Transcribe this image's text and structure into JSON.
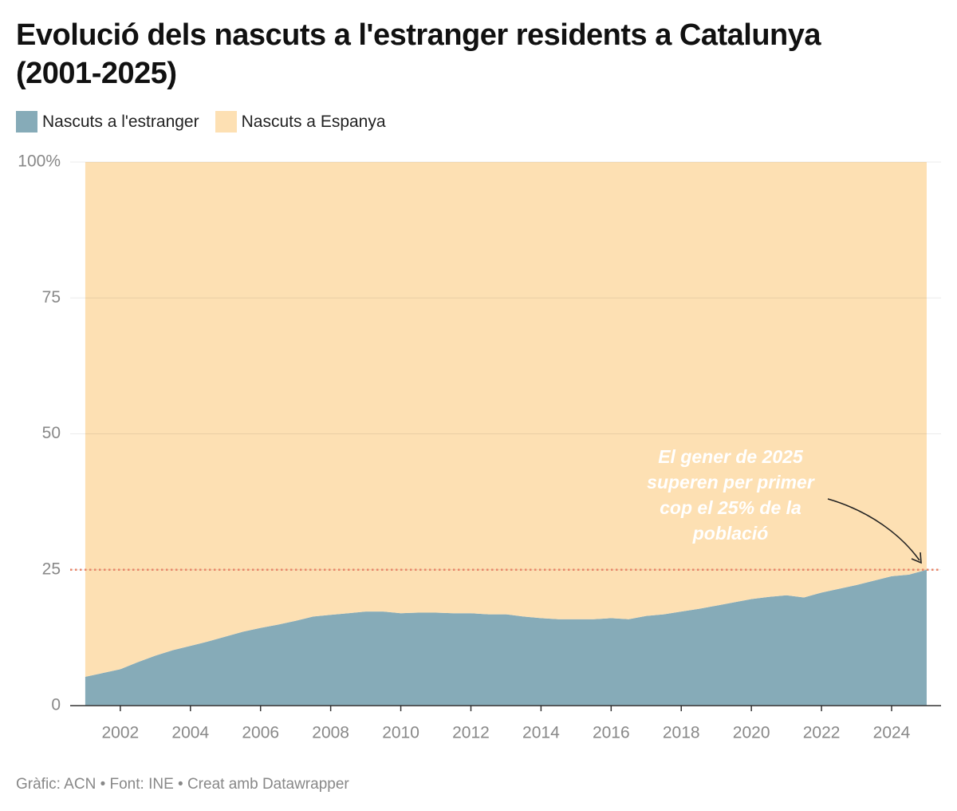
{
  "chart_data": {
    "type": "stacked_area",
    "title": "Evolució dels nascuts a l'estranger residents a Catalunya (2001-2025)",
    "footer": "Gràfic: ACN • Font: INE • Creat amb Datawrapper",
    "x": [
      2001,
      2001.5,
      2002,
      2002.5,
      2003,
      2003.5,
      2004,
      2004.5,
      2005,
      2005.5,
      2006,
      2006.5,
      2007,
      2007.5,
      2008,
      2008.5,
      2009,
      2009.5,
      2010,
      2010.5,
      2011,
      2011.5,
      2012,
      2012.5,
      2013,
      2013.5,
      2014,
      2014.5,
      2015,
      2015.5,
      2016,
      2016.5,
      2017,
      2017.5,
      2018,
      2018.5,
      2019,
      2019.5,
      2020,
      2020.5,
      2021,
      2021.5,
      2022,
      2022.5,
      2023,
      2023.5,
      2024,
      2024.5,
      2025
    ],
    "series": [
      {
        "name": "Nascuts a l'estranger",
        "color": "#86abb8",
        "values": [
          5.3,
          6.0,
          6.7,
          8.0,
          9.2,
          10.2,
          11.0,
          11.8,
          12.7,
          13.6,
          14.3,
          14.9,
          15.6,
          16.4,
          16.7,
          17.0,
          17.3,
          17.3,
          17.0,
          17.1,
          17.1,
          17.0,
          17.0,
          16.8,
          16.8,
          16.4,
          16.1,
          15.9,
          15.9,
          15.9,
          16.1,
          15.9,
          16.5,
          16.8,
          17.3,
          17.8,
          18.4,
          19.0,
          19.6,
          20.0,
          20.3,
          19.9,
          20.8,
          21.5,
          22.2,
          23.0,
          23.8,
          24.1,
          25.0
        ]
      },
      {
        "name": "Nascuts a Espanya",
        "color": "#fde0b3",
        "values": [
          94.7,
          94.0,
          93.3,
          92.0,
          90.8,
          89.8,
          89.0,
          88.2,
          87.3,
          86.4,
          85.7,
          85.1,
          84.4,
          83.6,
          83.3,
          83.0,
          82.7,
          82.7,
          83.0,
          82.9,
          82.9,
          83.0,
          83.0,
          83.2,
          83.2,
          83.6,
          83.9,
          84.1,
          84.1,
          84.1,
          83.9,
          84.1,
          83.5,
          83.2,
          82.7,
          82.2,
          81.6,
          81.0,
          80.4,
          80.0,
          79.7,
          80.1,
          79.2,
          78.5,
          77.8,
          77.0,
          76.2,
          75.9,
          75.0
        ]
      }
    ],
    "xlim": [
      2000.57,
      2025.41
    ],
    "xticks": [
      2002,
      2004,
      2006,
      2008,
      2010,
      2012,
      2014,
      2016,
      2018,
      2020,
      2022,
      2024
    ],
    "ylim": [
      0,
      100
    ],
    "yticks": [
      0,
      25,
      50,
      75,
      {
        "value": 100,
        "label": "100%"
      }
    ],
    "grid": true,
    "reference_line": {
      "value": 25,
      "color": "#e8866a"
    },
    "annotation": [
      "El gener de 2025",
      "superen per primer",
      "cop el 25% de la",
      "població"
    ]
  }
}
